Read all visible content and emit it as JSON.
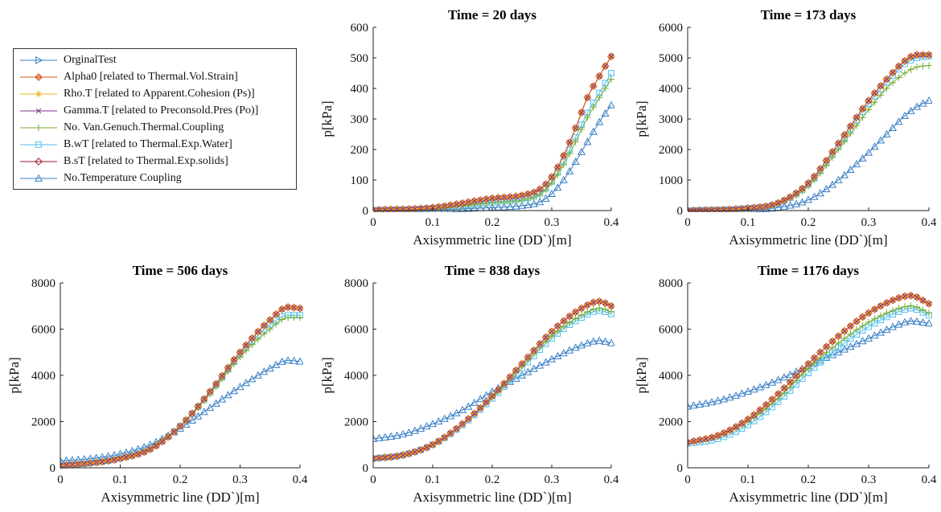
{
  "legend_title": "",
  "chart_data": [
    {
      "type": "line",
      "title": "Time =  20 days",
      "xlabel": "Axisymmetric line (DD`)[m]",
      "ylabel": "p[kPa]",
      "xlim": [
        0,
        0.4
      ],
      "ylim": [
        0,
        600
      ],
      "xticks": [
        "0",
        "0.1",
        "0.2",
        "0.3",
        "0.4"
      ],
      "yticks": [
        "0",
        "100",
        "200",
        "300",
        "400",
        "500",
        "600"
      ],
      "x": [
        0,
        0.1,
        0.2,
        0.25,
        0.28,
        0.3,
        0.32,
        0.34,
        0.36,
        0.38,
        0.4
      ],
      "series": [
        {
          "name": "Alpha0 [related to Thermal.Vol.Strain]",
          "values": [
            2,
            10,
            40,
            50,
            70,
            110,
            180,
            270,
            370,
            440,
            505
          ]
        },
        {
          "name": "B.sT [related to Thermal.Exp.solids]",
          "values": [
            2,
            10,
            40,
            50,
            70,
            110,
            180,
            270,
            370,
            440,
            505
          ]
        },
        {
          "name": "No. Van.Genuch.Thermal.Coupling",
          "values": [
            1,
            6,
            25,
            34,
            52,
            90,
            150,
            225,
            305,
            370,
            430
          ]
        },
        {
          "name": "B.wT [related to Thermal.Exp.Water]",
          "values": [
            1,
            7,
            28,
            38,
            56,
            95,
            160,
            240,
            320,
            385,
            450
          ]
        },
        {
          "name": "No.Temperature Coupling",
          "values": [
            0,
            2,
            10,
            16,
            28,
            55,
            100,
            160,
            225,
            290,
            345
          ]
        }
      ]
    },
    {
      "type": "line",
      "title": "Time =  173 days",
      "xlabel": "Axisymmetric line (DD`)[m]",
      "ylabel": "p[kPa]",
      "xlim": [
        0,
        0.4
      ],
      "ylim": [
        0,
        6000
      ],
      "xticks": [
        "0",
        "0.1",
        "0.2",
        "0.3",
        "0.4"
      ],
      "yticks": [
        "0",
        "1000",
        "2000",
        "3000",
        "4000",
        "5000",
        "6000"
      ],
      "x": [
        0,
        0.1,
        0.15,
        0.2,
        0.25,
        0.3,
        0.33,
        0.36,
        0.38,
        0.4
      ],
      "series": [
        {
          "name": "Alpha0 [related to Thermal.Vol.Strain]",
          "values": [
            0,
            80,
            250,
            900,
            2200,
            3600,
            4300,
            4900,
            5100,
            5100
          ]
        },
        {
          "name": "B.sT [related to Thermal.Exp.solids]",
          "values": [
            0,
            80,
            250,
            900,
            2200,
            3600,
            4300,
            4900,
            5100,
            5100
          ]
        },
        {
          "name": "No. Van.Genuch.Thermal.Coupling",
          "values": [
            0,
            70,
            220,
            800,
            2000,
            3300,
            4000,
            4500,
            4700,
            4750
          ]
        },
        {
          "name": "B.wT [related to Thermal.Exp.Water]",
          "values": [
            0,
            75,
            230,
            850,
            2100,
            3500,
            4200,
            4800,
            5000,
            5050
          ]
        },
        {
          "name": "No.Temperature Coupling",
          "values": [
            0,
            30,
            100,
            350,
            1000,
            1900,
            2500,
            3100,
            3400,
            3600
          ]
        }
      ]
    },
    {
      "type": "line",
      "title": "Time =  506 days",
      "xlabel": "Axisymmetric line (DD`)[m]",
      "ylabel": "p[kPa]",
      "xlim": [
        0,
        0.4
      ],
      "ylim": [
        0,
        8000
      ],
      "xticks": [
        "0",
        "0.1",
        "0.2",
        "0.3",
        "0.4"
      ],
      "yticks": [
        "0",
        "2000",
        "4000",
        "6000",
        "8000"
      ],
      "x": [
        0,
        0.05,
        0.1,
        0.15,
        0.2,
        0.25,
        0.3,
        0.35,
        0.38,
        0.4
      ],
      "series": [
        {
          "name": "Alpha0 [related to Thermal.Vol.Strain]",
          "values": [
            100,
            200,
            400,
            800,
            1800,
            3300,
            5000,
            6400,
            6950,
            6900
          ]
        },
        {
          "name": "B.sT [related to Thermal.Exp.solids]",
          "values": [
            100,
            200,
            400,
            800,
            1800,
            3300,
            5000,
            6400,
            6950,
            6900
          ]
        },
        {
          "name": "No. Van.Genuch.Thermal.Coupling",
          "values": [
            100,
            210,
            420,
            850,
            1800,
            3200,
            4800,
            6000,
            6500,
            6500
          ]
        },
        {
          "name": "B.wT [related to Thermal.Exp.Water]",
          "values": [
            100,
            205,
            410,
            830,
            1800,
            3250,
            4900,
            6200,
            6600,
            6600
          ]
        },
        {
          "name": "No.Temperature Coupling",
          "values": [
            300,
            400,
            600,
            1000,
            1700,
            2600,
            3500,
            4300,
            4650,
            4600
          ]
        }
      ]
    },
    {
      "type": "line",
      "title": "Time =  838 days",
      "xlabel": "Axisymmetric line (DD`)[m]",
      "ylabel": "p[kPa]",
      "xlim": [
        0,
        0.4
      ],
      "ylim": [
        0,
        8000
      ],
      "xticks": [
        "0",
        "0.1",
        "0.2",
        "0.3",
        "0.4"
      ],
      "yticks": [
        "0",
        "2000",
        "4000",
        "6000",
        "8000"
      ],
      "x": [
        0,
        0.05,
        0.1,
        0.15,
        0.2,
        0.25,
        0.3,
        0.35,
        0.38,
        0.4
      ],
      "series": [
        {
          "name": "Alpha0 [related to Thermal.Vol.Strain]",
          "values": [
            400,
            550,
            1000,
            1900,
            3100,
            4500,
            5900,
            6900,
            7200,
            7000
          ]
        },
        {
          "name": "B.sT [related to Thermal.Exp.solids]",
          "values": [
            400,
            550,
            1000,
            1900,
            3100,
            4500,
            5900,
            6900,
            7200,
            7000
          ]
        },
        {
          "name": "No. Van.Genuch.Thermal.Coupling",
          "values": [
            400,
            550,
            1000,
            1900,
            3050,
            4400,
            5700,
            6600,
            6900,
            6750
          ]
        },
        {
          "name": "B.wT [related to Thermal.Exp.Water]",
          "values": [
            400,
            550,
            1000,
            1850,
            3000,
            4300,
            5600,
            6500,
            6800,
            6650
          ]
        },
        {
          "name": "No.Temperature Coupling",
          "values": [
            1250,
            1450,
            1900,
            2500,
            3300,
            4000,
            4700,
            5300,
            5500,
            5400
          ]
        }
      ]
    },
    {
      "type": "line",
      "title": "Time =  1176 days",
      "xlabel": "Axisymmetric line (DD`)[m]",
      "ylabel": "p[kPa]",
      "xlim": [
        0,
        0.4
      ],
      "ylim": [
        0,
        8000
      ],
      "xticks": [
        "0",
        "0.1",
        "0.2",
        "0.3",
        "0.4"
      ],
      "yticks": [
        "0",
        "2000",
        "4000",
        "6000",
        "8000"
      ],
      "x": [
        0,
        0.05,
        0.1,
        0.15,
        0.2,
        0.25,
        0.3,
        0.35,
        0.37,
        0.4
      ],
      "series": [
        {
          "name": "Alpha0 [related to Thermal.Vol.Strain]",
          "values": [
            1100,
            1400,
            2100,
            3200,
            4500,
            5700,
            6700,
            7350,
            7450,
            7100
          ]
        },
        {
          "name": "B.sT [related to Thermal.Exp.solids]",
          "values": [
            1100,
            1400,
            2100,
            3200,
            4500,
            5700,
            6700,
            7350,
            7450,
            7100
          ]
        },
        {
          "name": "No. Van.Genuch.Thermal.Coupling",
          "values": [
            1100,
            1350,
            2000,
            3000,
            4300,
            5400,
            6300,
            6900,
            7000,
            6700
          ]
        },
        {
          "name": "B.wT [related to Thermal.Exp.Water]",
          "values": [
            1050,
            1250,
            1850,
            2850,
            4100,
            5200,
            6100,
            6750,
            6900,
            6600
          ]
        },
        {
          "name": "No.Temperature Coupling",
          "values": [
            2650,
            2900,
            3300,
            3800,
            4400,
            5000,
            5600,
            6200,
            6350,
            6250
          ]
        }
      ]
    }
  ],
  "legend": [
    {
      "label": "OrginalTest",
      "color": "#3a7fc4",
      "marker": "triangle-right"
    },
    {
      "label": "Alpha0 [related to Thermal.Vol.Strain]",
      "color": "#d95319",
      "marker": "diamond-filled"
    },
    {
      "label": "Rho.T [related to Apparent.Cohesion (Ps)]",
      "color": "#edb120",
      "marker": "asterisk"
    },
    {
      "label": "Gamma.T [related to Preconsold.Pres (Po)]",
      "color": "#7e2f8e",
      "marker": "x"
    },
    {
      "label": "No. Van.Genuch.Thermal.Coupling",
      "color": "#77ac30",
      "marker": "plus"
    },
    {
      "label": "B.wT [related to Thermal.Exp.Water]",
      "color": "#4dbeee",
      "marker": "square"
    },
    {
      "label": "B.sT [related to Thermal.Exp.solids]",
      "color": "#a2142f",
      "marker": "diamond"
    },
    {
      "label": "No.Temperature Coupling",
      "color": "#3a7fc4",
      "marker": "triangle-up"
    }
  ]
}
